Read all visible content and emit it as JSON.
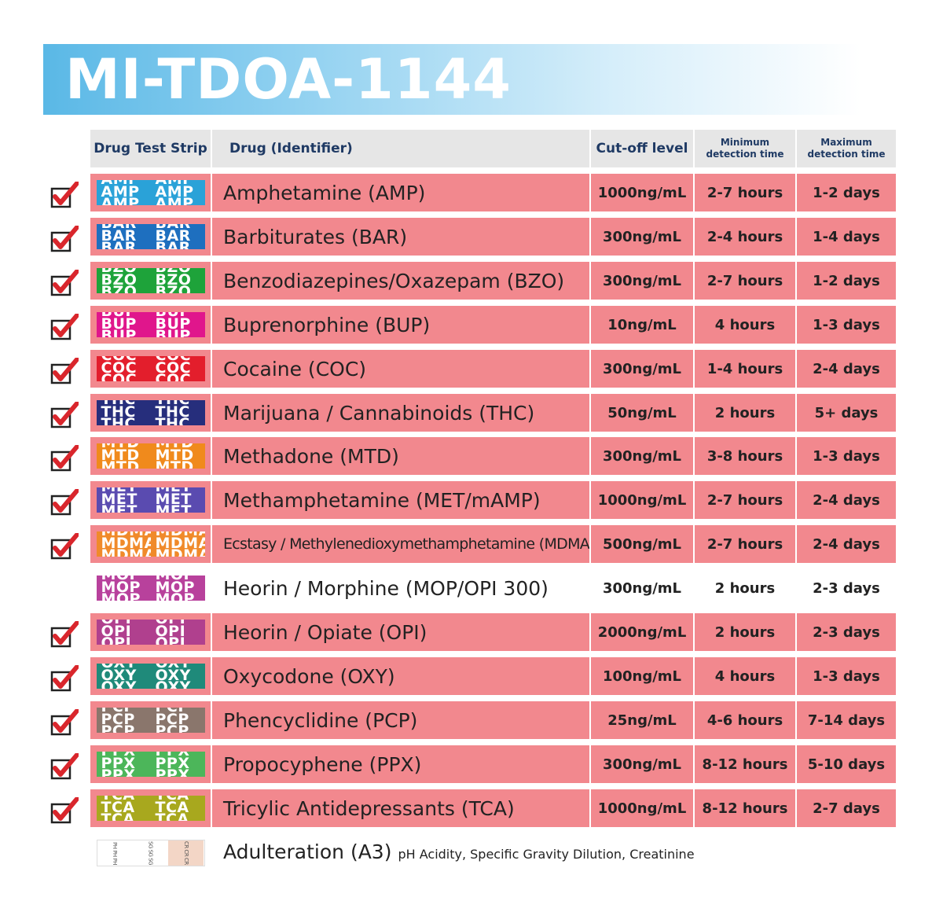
{
  "title": "MI-TDOA-1144",
  "headers": {
    "strip": "Drug Test Strip",
    "drug": "Drug (Identifier)",
    "cutoff": "Cut-off level",
    "min_line1": "Minimum",
    "min_line2": "detection time",
    "max_line1": "Maximum",
    "max_line2": "detection time"
  },
  "colors": {
    "row_pink": "#f2888e",
    "check_red": "#d9262c",
    "header_text": "#1f3a64"
  },
  "rows": [
    {
      "code": "AMP",
      "name": "Amphetamine (AMP)",
      "cutoff": "1000ng/mL",
      "min": "2-7 hours",
      "max": "1-2 days",
      "checked": true,
      "color": "#2aa2d8"
    },
    {
      "code": "BAR",
      "name": "Barbiturates (BAR)",
      "cutoff": "300ng/mL",
      "min": "2-4 hours",
      "max": "1-4 days",
      "checked": true,
      "color": "#1e6fbf"
    },
    {
      "code": "BZO",
      "name": "Benzodiazepines/Oxazepam (BZO)",
      "cutoff": "300ng/mL",
      "min": "2-7 hours",
      "max": "1-2 days",
      "checked": true,
      "color": "#1ea33a"
    },
    {
      "code": "BUP",
      "name": "Buprenorphine (BUP)",
      "cutoff": "10ng/mL",
      "min": "4 hours",
      "max": "1-3 days",
      "checked": true,
      "color": "#e0168c"
    },
    {
      "code": "COC",
      "name": "Cocaine (COC)",
      "cutoff": "300ng/mL",
      "min": "1-4 hours",
      "max": "2-4 days",
      "checked": true,
      "color": "#e31e2c"
    },
    {
      "code": "THC",
      "name": "Marijuana / Cannabinoids (THC)",
      "cutoff": "50ng/mL",
      "min": "2 hours",
      "max": "5+ days",
      "checked": true,
      "color": "#262e7c"
    },
    {
      "code": "MTD",
      "name": "Methadone (MTD)",
      "cutoff": "300ng/mL",
      "min": "3-8 hours",
      "max": "1-3 days",
      "checked": true,
      "color": "#f08a1c"
    },
    {
      "code": "MET",
      "name": "Methamphetamine (MET/mAMP)",
      "cutoff": "1000ng/mL",
      "min": "2-7 hours",
      "max": "2-4 days",
      "checked": true,
      "color": "#5a4bb0"
    },
    {
      "code": "MDMA",
      "name": "Ecstasy / Methylenedioxymethamphetamine (MDMA)",
      "cutoff": "500ng/mL",
      "min": "2-7 hours",
      "max": "2-4 days",
      "checked": true,
      "color": "#f08a2a",
      "small": true
    },
    {
      "code": "MOP",
      "name": "Heorin / Morphine (MOP/OPI 300)",
      "cutoff": "300ng/mL",
      "min": "2 hours",
      "max": "2-3 days",
      "checked": false,
      "color": "#b8419c"
    },
    {
      "code": "OPI",
      "name": "Heorin / Opiate (OPI)",
      "cutoff": "2000ng/mL",
      "min": "2 hours",
      "max": "2-3 days",
      "checked": true,
      "color": "#b0408e"
    },
    {
      "code": "OXY",
      "name": "Oxycodone (OXY)",
      "cutoff": "100ng/mL",
      "min": "4 hours",
      "max": "1-3 days",
      "checked": true,
      "color": "#1f8a7a"
    },
    {
      "code": "PCP",
      "name": "Phencyclidine (PCP)",
      "cutoff": "25ng/mL",
      "min": "4-6 hours",
      "max": "7-14 days",
      "checked": true,
      "color": "#8a766c"
    },
    {
      "code": "PPX",
      "name": "Propocyphene (PPX)",
      "cutoff": "300ng/mL",
      "min": "8-12 hours",
      "max": "5-10 days",
      "checked": true,
      "color": "#4cb65a"
    },
    {
      "code": "TCA",
      "name": "Tricylic Antidepressants (TCA)",
      "cutoff": "1000ng/mL",
      "min": "8-12 hours",
      "max": "2-7 days",
      "checked": true,
      "color": "#a8a81e"
    }
  ],
  "adulteration": {
    "name": "Adulteration (A3)",
    "description": "pH Acidity, Specific Gravity Dilution, Creatinine",
    "segments": [
      "PH PH PH",
      "SG SG SG",
      "CR CR CR"
    ]
  }
}
